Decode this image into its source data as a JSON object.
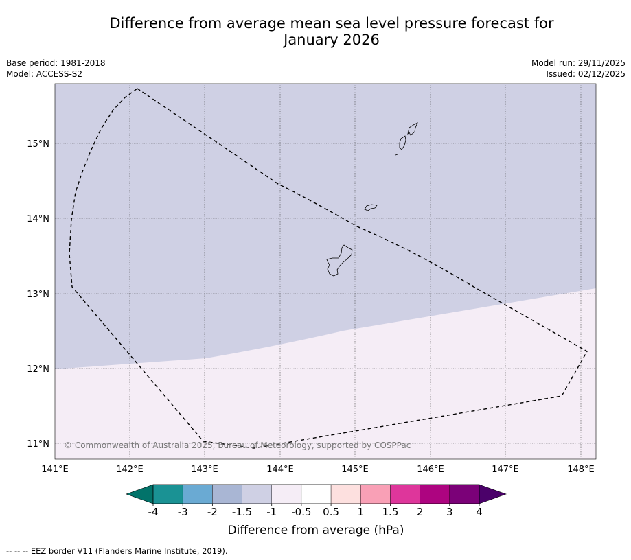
{
  "header": {
    "title_line1": "Difference from average mean sea level pressure forecast for",
    "title_line2": "January 2026",
    "base_period": "Base period: 1981-2018",
    "model": "Model: ACCESS-S2",
    "model_run": "Model run: 29/11/2025",
    "issued": "Issued: 02/12/2025"
  },
  "map": {
    "lat_labels": [
      "15°N",
      "14°N",
      "13°N",
      "12°N",
      "11°N"
    ],
    "lon_labels": [
      "141°E",
      "142°E",
      "143°E",
      "144°E",
      "145°E",
      "146°E",
      "147°E",
      "148°E"
    ],
    "copyright": "© Commonwealth of Australia 2025, Bureau of Meteorology, supported by COSPPac",
    "regions": [
      {
        "name": "upper",
        "category": "-1.5 to -1",
        "color": "#cfd0e4"
      },
      {
        "name": "lower",
        "category": "-1 to -0.5",
        "color": "#f5edf6"
      }
    ]
  },
  "colorbar": {
    "tick_labels": [
      "-4",
      "-3",
      "-2",
      "-1.5",
      "-1",
      "-0.5",
      "0.5",
      "1",
      "1.5",
      "2",
      "3",
      "4"
    ],
    "colors": [
      "#02736a",
      "#1a9294",
      "#6aaad3",
      "#a9b6d4",
      "#cfd0e4",
      "#f5edf6",
      "#ffffff",
      "#fde0df",
      "#f9a0b6",
      "#de369b",
      "#ad0480",
      "#7b0178",
      "#4b016a"
    ],
    "label": "Difference from average (hPa)"
  },
  "footnote": "--  --  -- EEZ border V11 (Flanders Marine Institute, 2019)."
}
